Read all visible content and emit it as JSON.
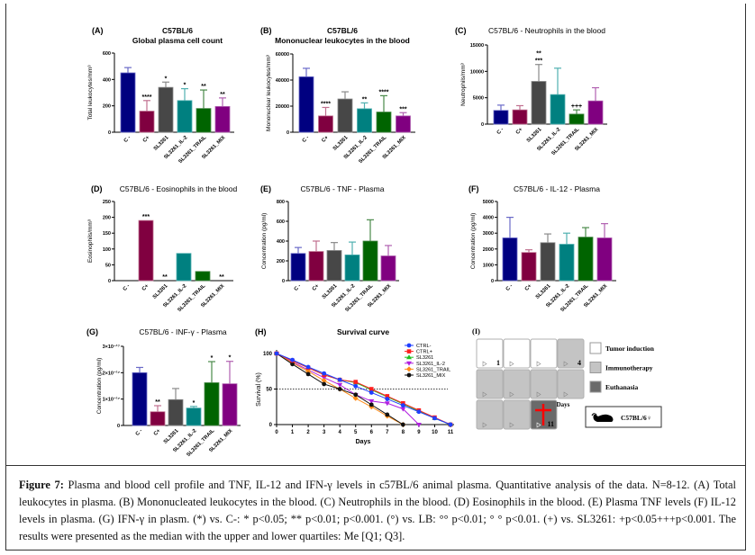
{
  "colors": {
    "c_minus": "#000080",
    "c_plus": "#800040",
    "sl3261": "#474747",
    "il2": "#008080",
    "trail": "#006400",
    "mix": "#800080"
  },
  "categories": [
    "C -",
    "C+",
    "SL3261",
    "SL3261_IL-2",
    "SL3261_TRAIL",
    "SL3261_MIX"
  ],
  "chart_data": [
    {
      "id": "A",
      "type": "bar",
      "panel_label": "(A)",
      "title": [
        "C57BL/6",
        "Global plasma cell count"
      ],
      "ylabel": "Total leukocytes/mm³",
      "ylim": [
        0,
        600
      ],
      "yticks": [
        0,
        200,
        400,
        600
      ],
      "ytick_labels": [
        "0",
        "200",
        "400",
        "600"
      ],
      "values": [
        450,
        160,
        340,
        240,
        180,
        195
      ],
      "error_upper": [
        490,
        240,
        380,
        330,
        320,
        260
      ],
      "significance": [
        [],
        [
          "****"
        ],
        [
          "*"
        ],
        [
          "*"
        ],
        [
          "**"
        ],
        [
          "**"
        ]
      ]
    },
    {
      "id": "B",
      "type": "bar",
      "panel_label": "(B)",
      "title": [
        "C57BL/6",
        "Mononuclear leukocytes in the blood"
      ],
      "ylabel": "Mononuclear leukocytes/mm³",
      "ylim": [
        0,
        60000
      ],
      "yticks": [
        0,
        20000,
        40000,
        60000
      ],
      "ytick_labels": [
        "0",
        "20000",
        "40000",
        "60000"
      ],
      "values": [
        42500,
        12500,
        25500,
        18000,
        15500,
        12500
      ],
      "error_upper": [
        49000,
        19000,
        31000,
        22500,
        28000,
        15000
      ],
      "significance": [
        [],
        [
          "****"
        ],
        [],
        [
          "**"
        ],
        [
          "****"
        ],
        [
          "***"
        ]
      ]
    },
    {
      "id": "C",
      "type": "bar",
      "panel_label": "(C)",
      "title": [
        "C57BL/6 - Neutrophils in the blood"
      ],
      "ylabel": "Neutrophils/mm³",
      "ylim": [
        0,
        15000
      ],
      "yticks": [
        0,
        5000,
        10000,
        15000
      ],
      "ytick_labels": [
        "0",
        "5000",
        "10000",
        "15000"
      ],
      "values": [
        2600,
        2700,
        8100,
        5600,
        1900,
        4400
      ],
      "error_upper": [
        3600,
        3500,
        11300,
        10600,
        2700,
        6900
      ],
      "significance": [
        [],
        [],
        [
          "***",
          "**"
        ],
        [],
        [
          "+++"
        ],
        []
      ]
    },
    {
      "id": "D",
      "type": "bar",
      "panel_label": "(D)",
      "title": [
        "C57BL/6 - Eosinophils in the blood"
      ],
      "ylabel": "Eosinophils/mm³",
      "ylim": [
        0,
        250
      ],
      "yticks": [
        0,
        50,
        100,
        150,
        200,
        250
      ],
      "ytick_labels": [
        "0",
        "50",
        "100",
        "150",
        "200",
        "250"
      ],
      "values": [
        0,
        190,
        0,
        86,
        29,
        0
      ],
      "error_upper": [
        null,
        null,
        null,
        null,
        null,
        null
      ],
      "significance": [
        [],
        [
          "***"
        ],
        [
          "**"
        ],
        [],
        [],
        [
          "**"
        ]
      ]
    },
    {
      "id": "E",
      "type": "bar",
      "panel_label": "(E)",
      "title": [
        "C57BL/6 - TNF - Plasma"
      ],
      "ylabel": "Concentration (pg/ml)",
      "ylim": [
        0,
        800
      ],
      "yticks": [
        0,
        200,
        400,
        600,
        800
      ],
      "ytick_labels": [
        "0",
        "200",
        "400",
        "600",
        "800"
      ],
      "values": [
        275,
        295,
        305,
        260,
        400,
        250
      ],
      "error_upper": [
        335,
        400,
        385,
        390,
        615,
        355
      ],
      "significance": [
        [],
        [],
        [],
        [],
        [],
        []
      ]
    },
    {
      "id": "F",
      "type": "bar",
      "panel_label": "(F)",
      "title": [
        "C57BL/6 - IL-12 - Plasma"
      ],
      "ylabel": "Concentration (pg/ml)",
      "ylim": [
        0,
        5000
      ],
      "yticks": [
        0,
        1000,
        2000,
        3000,
        4000,
        5000
      ],
      "ytick_labels": [
        "0",
        "1000",
        "2000",
        "3000",
        "4000",
        "5000"
      ],
      "values": [
        2700,
        1780,
        2400,
        2300,
        2750,
        2700
      ],
      "error_upper": [
        4000,
        1950,
        2950,
        3000,
        3350,
        3600
      ],
      "significance": [
        [],
        [],
        [],
        [],
        [],
        []
      ]
    },
    {
      "id": "G",
      "type": "bar",
      "panel_label": "(G)",
      "title": [
        "C57BL/6 - INF-γ - Plasma"
      ],
      "ylabel": "Concentration (pg/ml)",
      "ylim": [
        0,
        3e-17
      ],
      "yticks": [
        0,
        1e-17,
        2e-17,
        3e-17
      ],
      "ytick_labels": [
        "0",
        "1×10⁻¹⁷",
        "2×10⁻¹⁷",
        "3×10⁻¹⁷"
      ],
      "values": [
        2e-17,
        5.2e-18,
        9.8e-18,
        6.6e-18,
        1.62e-17,
        1.58e-17
      ],
      "error_upper": [
        2.2e-17,
        7.5e-18,
        1.4e-17,
        7.2e-18,
        2.42e-17,
        2.43e-17
      ],
      "significance": [
        [],
        [
          "**"
        ],
        [],
        [
          "*"
        ],
        [
          "*"
        ],
        [
          "*"
        ]
      ]
    },
    {
      "id": "H",
      "type": "line",
      "panel_label": "(H)",
      "title": "Survival curve",
      "xlabel": "Days",
      "ylabel": "Survival (%)",
      "xlim": [
        0,
        11
      ],
      "ylim": [
        0,
        100
      ],
      "xticks": [
        0,
        1,
        2,
        3,
        4,
        5,
        6,
        7,
        8,
        9,
        10,
        11
      ],
      "yticks": [
        0,
        50,
        100
      ],
      "reference_line": 50,
      "legend_position": "top-right",
      "series": [
        {
          "name": "CTRL-",
          "color": "#1f3fff",
          "marker": "circle",
          "x": [
            0,
            1,
            2,
            3,
            4,
            5,
            6,
            7,
            8,
            9,
            10,
            11
          ],
          "y": [
            100,
            91,
            81,
            72,
            63,
            54,
            45,
            36,
            27,
            18,
            9,
            0
          ]
        },
        {
          "name": "CTRL+",
          "color": "#ff2020",
          "marker": "square",
          "x": [
            0,
            1,
            2,
            3,
            4,
            5,
            6,
            7,
            8,
            9,
            10,
            11
          ],
          "y": [
            100,
            90,
            80,
            70,
            63,
            60,
            50,
            40,
            30,
            20,
            10,
            0
          ]
        },
        {
          "name": "SL3261",
          "color": "#20c020",
          "marker": "triangle",
          "x": [
            0,
            1,
            2,
            3,
            4,
            5,
            6,
            7,
            8,
            9,
            10,
            11
          ],
          "y": [
            100,
            90,
            80,
            70,
            63,
            59,
            49,
            39,
            29,
            19,
            9,
            0
          ]
        },
        {
          "name": "SL3261_IL-2",
          "color": "#b020e0",
          "marker": "triangle-down",
          "x": [
            0,
            1,
            2,
            3,
            4,
            5,
            6,
            7,
            8,
            9
          ],
          "y": [
            100,
            88,
            77,
            66,
            56,
            42,
            33,
            30,
            22,
            0
          ]
        },
        {
          "name": "SL3261_TRAIL",
          "color": "#ff8c1a",
          "marker": "diamond",
          "x": [
            0,
            1,
            2,
            3,
            4,
            5,
            6,
            7,
            8
          ],
          "y": [
            100,
            87,
            75,
            62,
            50,
            37,
            25,
            12,
            0
          ]
        },
        {
          "name": "SL3261_MIX",
          "color": "#111111",
          "marker": "circle",
          "x": [
            0,
            1,
            2,
            3,
            4,
            5,
            6,
            7,
            8
          ],
          "y": [
            100,
            85,
            71,
            57,
            50,
            42,
            28,
            14,
            0
          ]
        }
      ]
    }
  ],
  "panel_i": {
    "label": "(I)",
    "cells": [
      {
        "state": "tumor",
        "number": "1"
      },
      {
        "state": "tumor",
        "number": ""
      },
      {
        "state": "tumor",
        "number": ""
      },
      {
        "state": "immuno",
        "number": "4"
      },
      {
        "state": "immuno",
        "number": ""
      },
      {
        "state": "immuno",
        "number": ""
      },
      {
        "state": "immuno",
        "number": ""
      },
      {
        "state": "immuno",
        "number": ""
      },
      {
        "state": "immuno",
        "number": ""
      },
      {
        "state": "immuno",
        "number": ""
      },
      {
        "state": "euthanasia",
        "number": "11"
      }
    ],
    "days_label": "Days",
    "legend": [
      {
        "state": "tumor",
        "label": "Tumor induction",
        "color": "#ffffff"
      },
      {
        "state": "immuno",
        "label": "Immunotherapy",
        "color": "#c4c4c4"
      },
      {
        "state": "euthanasia",
        "label": "Euthanasia",
        "color": "#6a6a6a"
      }
    ],
    "strain_label": "C57BL/6♀",
    "icons": {
      "mouse": "mouse-icon",
      "cross": "cross-icon",
      "arrow": "play-triangle-icon"
    }
  },
  "caption": {
    "prefix": "Figure 7:",
    "text": " Plasma and blood cell profile and TNF, IL-12 and IFN-γ levels in c57BL/6 animal plasma. Quantitative analysis of the data. N=8-12. (A) Total leukocytes in plasma. (B) Mononucleated leukocytes in the blood. (C) Neutrophils in the blood. (D) Eosinophils in the blood. (E) Plasma TNF levels (F) IL-12 levels in plasma. (G) IFN-γ in plasm. (*) vs. C-: * p<0.05; ** p<0.01; p<0.001. (°) vs. LB: °° p<0.01; ° ° p<0.01. (+) vs. SL3261: +p<0.05+++p<0.001. The results were presented as the median with the upper and lower quartiles: Me [Q1; Q3]."
  }
}
